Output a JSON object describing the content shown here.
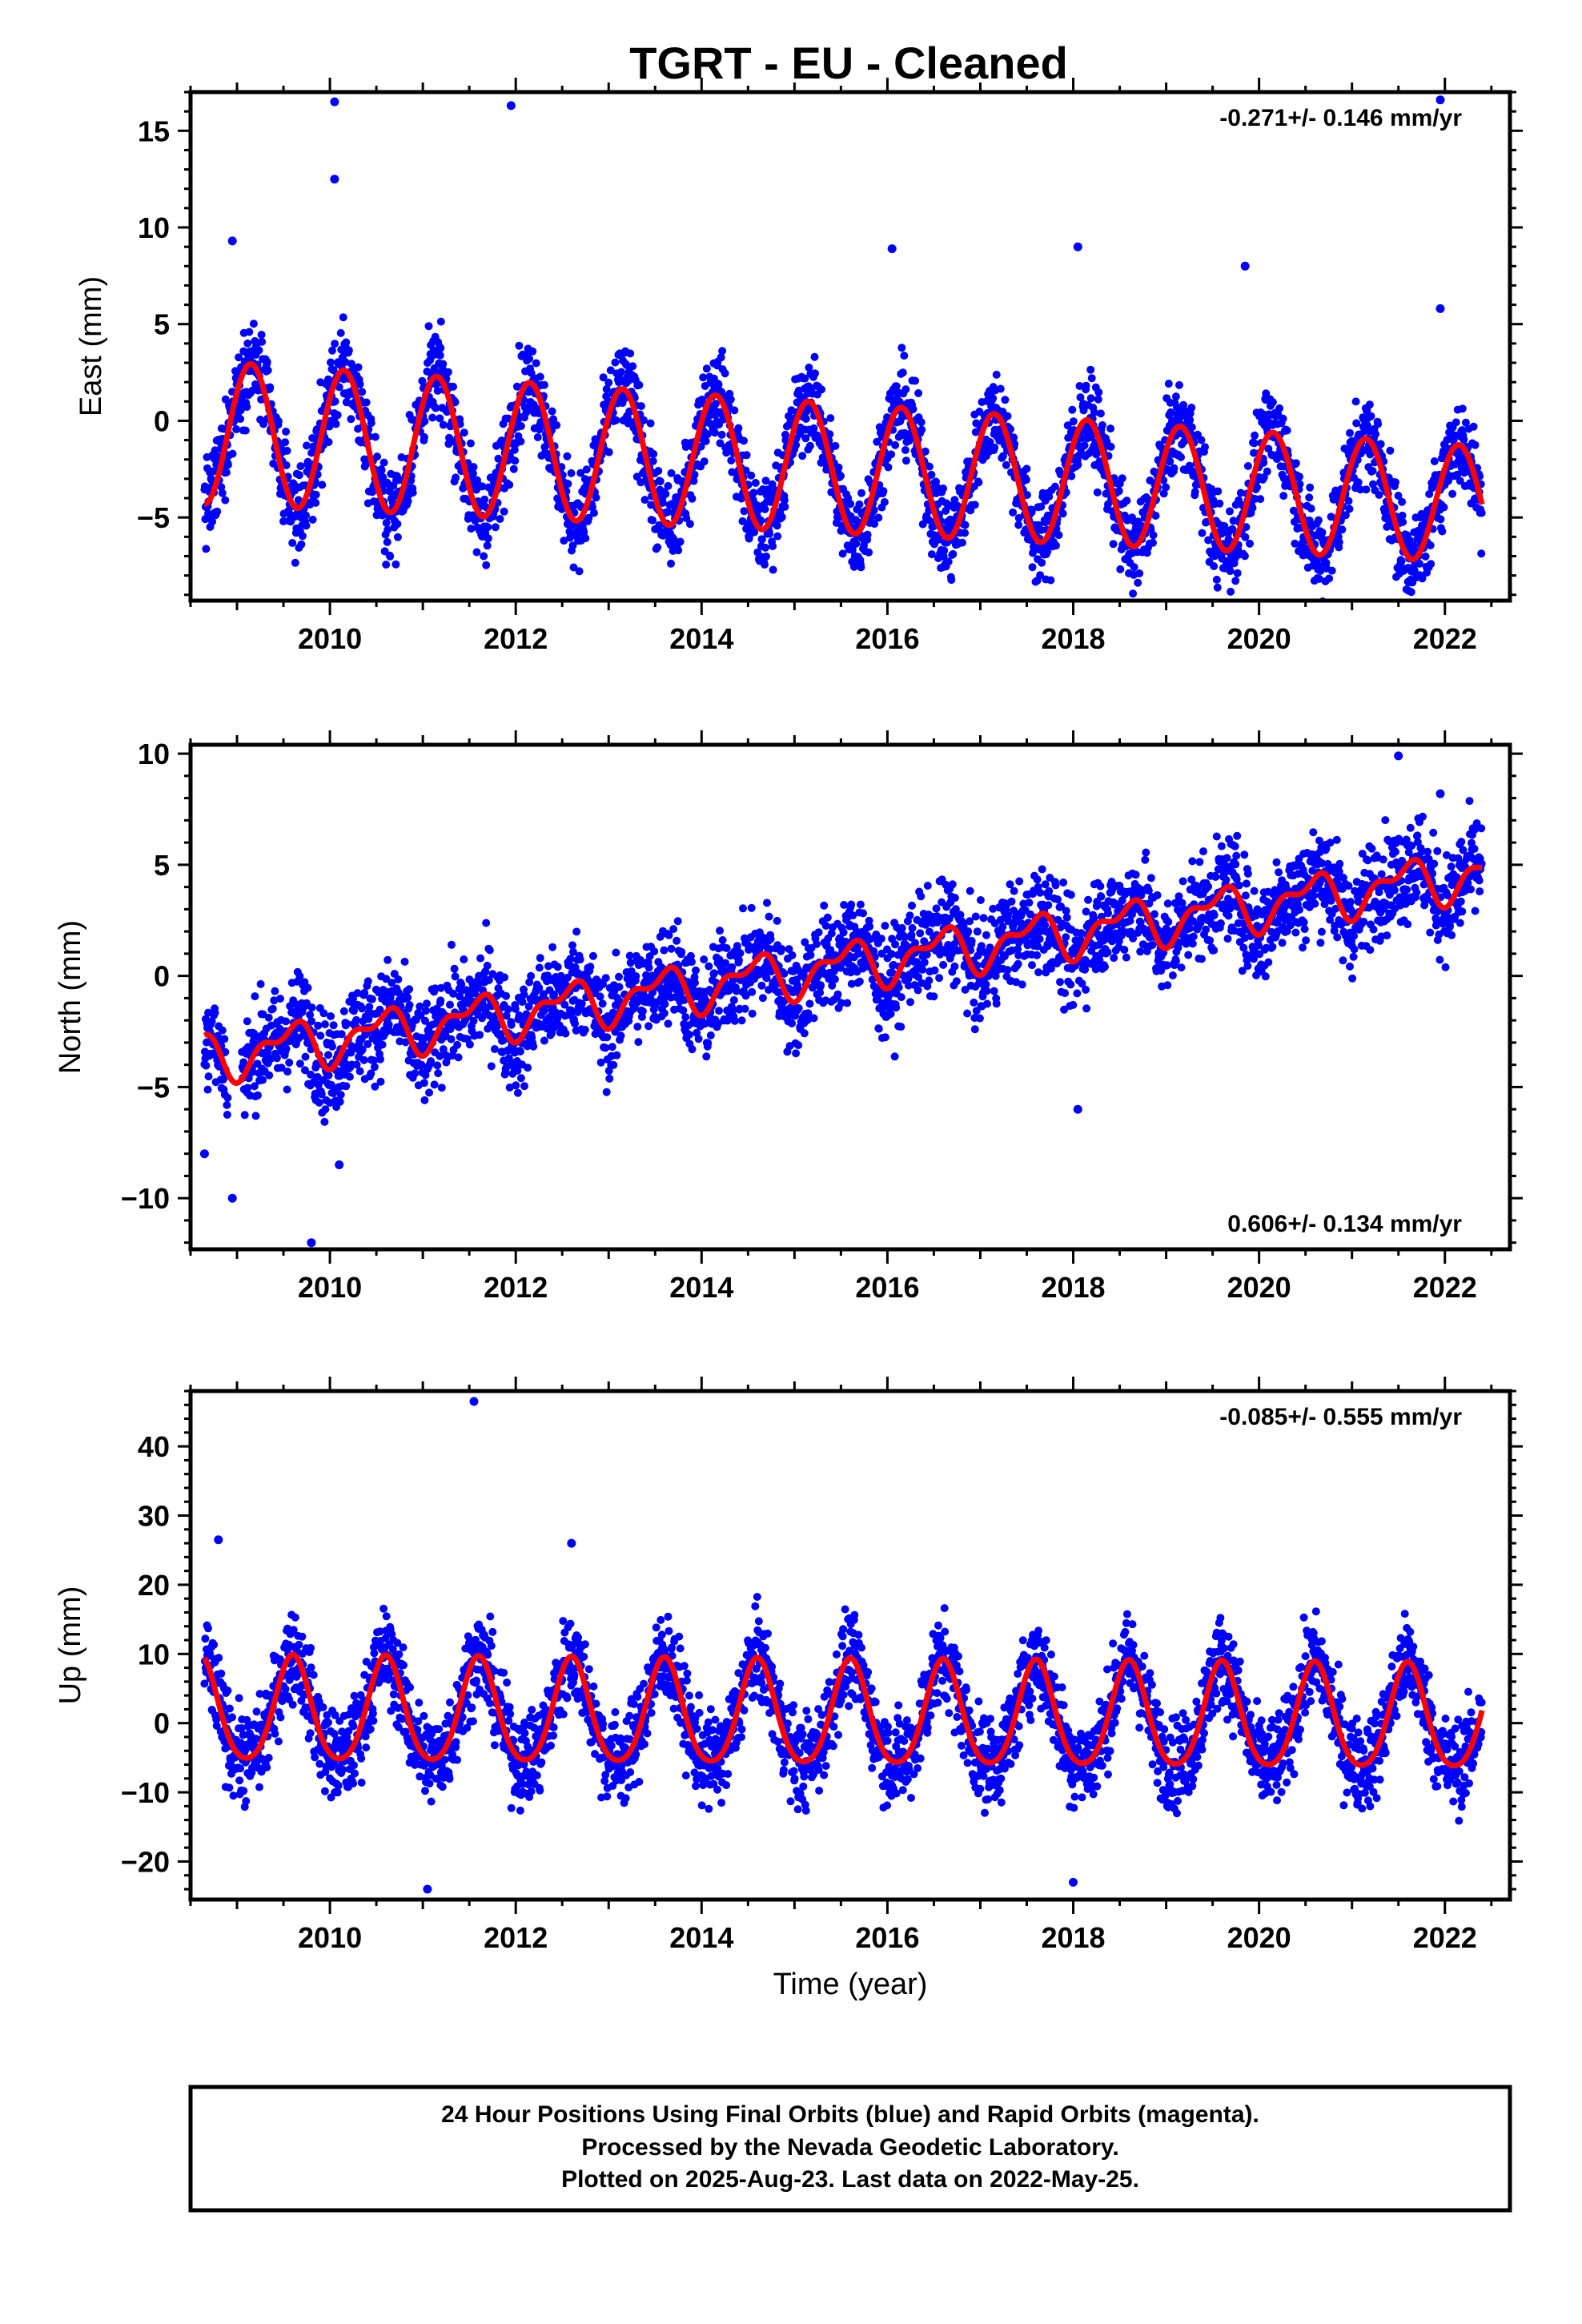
{
  "title": "TGRT  - EU - Cleaned",
  "colors": {
    "points": "#0000ff",
    "fit": "#ff0000",
    "frame": "#000000"
  },
  "chart_data": [
    {
      "type": "scatter",
      "ylabel": "East (mm)",
      "xlim": [
        2008.5,
        2022.7
      ],
      "ylim": [
        -9.3,
        17.0
      ],
      "yticks": [
        15,
        10,
        5,
        0,
        -5
      ],
      "xticks": [
        2010,
        2012,
        2014,
        2016,
        2018,
        2020,
        2022
      ],
      "rate": "-0.271+/- 0.146 mm/yr",
      "rate_position": "top-right",
      "data_range": [
        2008.65,
        2022.4
      ],
      "fit": {
        "offset_mm": -0.6,
        "trend_mm_per_yr": -0.271,
        "annual_amp_start_mm": 3.7,
        "annual_amp_end_mm": 3.0
      },
      "outliers": [
        [
          2010.05,
          16.5
        ],
        [
          2010.05,
          12.5
        ],
        [
          2011.95,
          16.3
        ],
        [
          2021.95,
          16.6
        ],
        [
          2008.95,
          9.3
        ],
        [
          2018.05,
          9.0
        ],
        [
          2019.85,
          8.0
        ],
        [
          2016.05,
          8.9
        ],
        [
          2021.95,
          5.8
        ]
      ]
    },
    {
      "type": "scatter",
      "ylabel": "North (mm)",
      "xlim": [
        2008.5,
        2022.7
      ],
      "ylim": [
        -12.3,
        10.4
      ],
      "yticks": [
        10,
        5,
        0,
        -5,
        -10
      ],
      "xticks": [
        2010,
        2012,
        2014,
        2016,
        2018,
        2020,
        2022
      ],
      "rate": "0.606+/- 0.134 mm/yr",
      "rate_position": "bottom-right",
      "data_range": [
        2008.65,
        2022.4
      ],
      "fit": {
        "offset_mm": -3.7,
        "trend_mm_per_yr": 0.606,
        "annual_amp_mm": 0.9
      },
      "outliers": [
        [
          2009.8,
          -12.0
        ],
        [
          2008.65,
          -8.0
        ],
        [
          2008.95,
          -10.0
        ],
        [
          2010.1,
          -8.5
        ],
        [
          2018.05,
          -6.0
        ],
        [
          2021.5,
          9.9
        ],
        [
          2021.95,
          8.2
        ]
      ]
    },
    {
      "type": "scatter",
      "ylabel": "Up (mm)",
      "xlabel": "Time (year)",
      "xlim": [
        2008.5,
        2022.7
      ],
      "ylim": [
        -25.5,
        48.0
      ],
      "yticks": [
        40,
        30,
        20,
        10,
        0,
        -10,
        -20
      ],
      "xticks": [
        2010,
        2012,
        2014,
        2016,
        2018,
        2020,
        2022
      ],
      "rate": "-0.085+/- 0.555 mm/yr",
      "rate_position": "top-right",
      "data_range": [
        2008.65,
        2022.4
      ],
      "fit": {
        "offset_mm": 1.5,
        "trend_mm_per_yr": -0.085,
        "annual_amp_mm": 7.5
      },
      "outliers": [
        [
          2011.55,
          46.5
        ],
        [
          2008.8,
          26.5
        ],
        [
          2012.6,
          26.0
        ],
        [
          2011.05,
          -24.0
        ],
        [
          2018.0,
          -23.0
        ]
      ]
    }
  ],
  "footer": {
    "line1": "24 Hour Positions Using Final Orbits (blue) and Rapid Orbits (magenta).",
    "line2": "Processed by the Nevada Geodetic Laboratory.",
    "line3": "Plotted on 2025-Aug-23. Last data on 2022-May-25."
  }
}
